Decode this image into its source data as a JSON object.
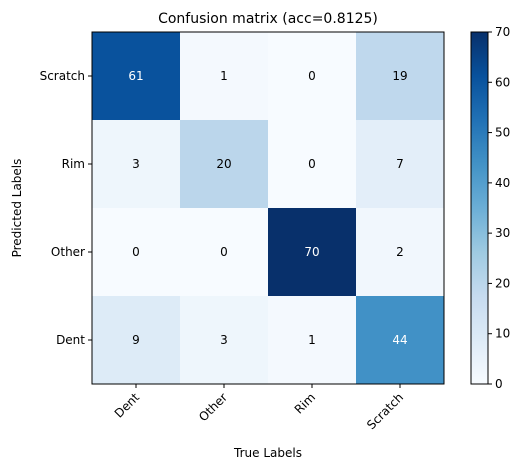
{
  "chart_data": {
    "type": "heatmap",
    "title": "Confusion matrix (acc=0.8125)",
    "xlabel": "True Labels",
    "ylabel": "Predicted Labels",
    "x_categories": [
      "Dent",
      "Other",
      "Rim",
      "Scratch"
    ],
    "y_categories": [
      "Scratch",
      "Rim",
      "Other",
      "Dent"
    ],
    "values": [
      [
        61,
        1,
        0,
        19
      ],
      [
        3,
        20,
        0,
        7
      ],
      [
        0,
        0,
        70,
        2
      ],
      [
        9,
        3,
        1,
        44
      ]
    ],
    "colorbar": {
      "ticks": [
        0,
        10,
        20,
        30,
        40,
        50,
        60,
        70
      ],
      "min": 0,
      "max": 70,
      "colormap": "Blues"
    }
  }
}
